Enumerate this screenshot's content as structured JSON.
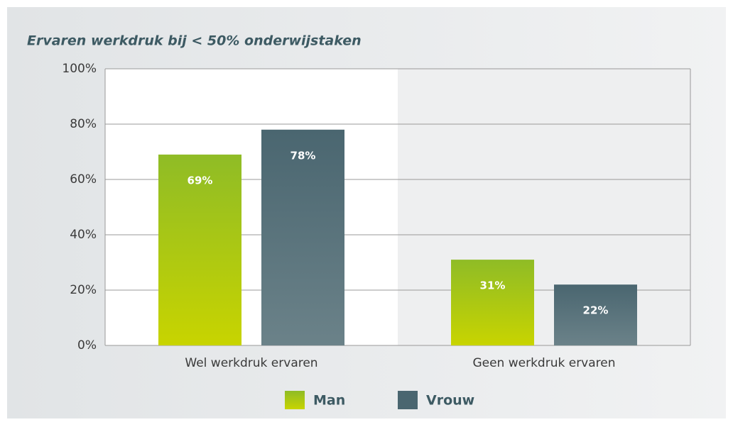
{
  "chart_data": {
    "type": "bar",
    "title": "Ervaren werkdruk bij < 50% onderwijstaken",
    "categories": [
      "Wel werkdruk ervaren",
      "Geen werkdruk ervaren"
    ],
    "series": [
      {
        "name": "Man",
        "color": "#8fbc26",
        "values": [
          69,
          31
        ],
        "value_labels": [
          "69%",
          "31%"
        ]
      },
      {
        "name": "Vrouw",
        "color": "#4a6670",
        "values": [
          78,
          22
        ],
        "value_labels": [
          "78%",
          "22%"
        ]
      }
    ],
    "ylim": [
      0,
      100
    ],
    "yticks": [
      {
        "value": 0,
        "label": "0%"
      },
      {
        "value": 20,
        "label": "20%"
      },
      {
        "value": 40,
        "label": "40%"
      },
      {
        "value": 60,
        "label": "60%"
      },
      {
        "value": 80,
        "label": "80%"
      },
      {
        "value": 100,
        "label": "100%"
      }
    ],
    "grid": true,
    "legend": "bottom"
  }
}
